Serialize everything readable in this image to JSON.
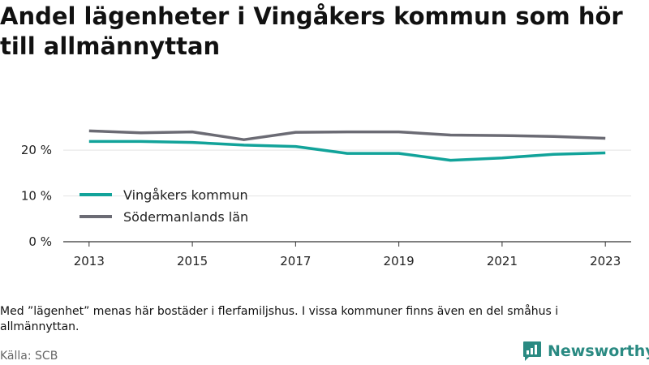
{
  "header": {
    "title": "Andel lägenheter i Vingåkers kommun som hör till allmännyttan"
  },
  "chart_data": {
    "type": "line",
    "x": [
      2013,
      2014,
      2015,
      2016,
      2017,
      2018,
      2019,
      2020,
      2021,
      2022,
      2023
    ],
    "x_tick_labels": [
      "2013",
      "2015",
      "2017",
      "2019",
      "2021",
      "2023"
    ],
    "y_tick_labels": [
      "0 %",
      "10 %",
      "20 %"
    ],
    "ylim": [
      0,
      28
    ],
    "grid": true,
    "legend_position": "bottom-left",
    "series": [
      {
        "name": "Vingåkers kommun",
        "color": "#12a39a",
        "values": [
          21.9,
          21.9,
          21.7,
          21.1,
          20.8,
          19.3,
          19.3,
          17.8,
          18.3,
          19.1,
          19.4
        ]
      },
      {
        "name": "Södermanlands län",
        "color": "#6b6b74",
        "values": [
          24.2,
          23.8,
          24.0,
          22.3,
          23.9,
          24.0,
          24.0,
          23.3,
          23.2,
          23.0,
          22.6
        ]
      }
    ]
  },
  "footer": {
    "note": "Med ”lägenhet” menas här bostäder i flerfamiljshus. I vissa kommuner finns även en del småhus i allmännyttan.",
    "source": "Källa: SCB",
    "brand": "Newsworthy"
  },
  "colors": {
    "brand": "#2a8a82",
    "grid": "#e3e3e3",
    "axis": "#333333"
  }
}
